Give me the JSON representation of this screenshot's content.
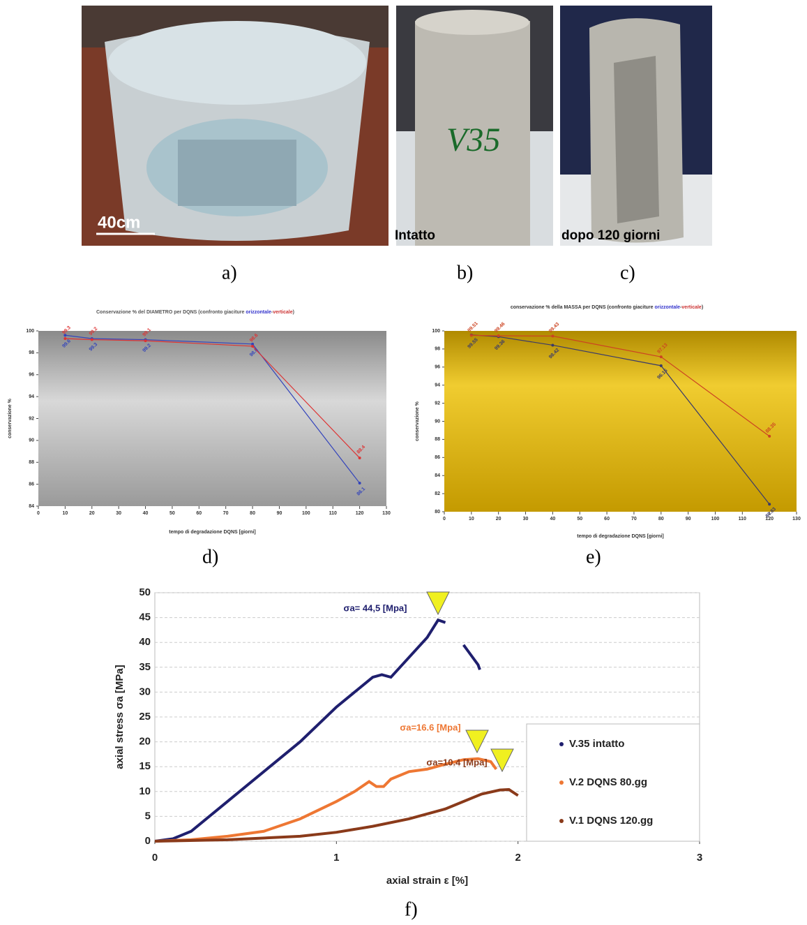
{
  "photos": {
    "scale_label": "40cm",
    "specimen_mark": "V35",
    "intact_label": "Intatto",
    "degraded_label": "dopo 120 giorni"
  },
  "panel_labels": [
    "a)",
    "b)",
    "c)",
    "d)",
    "e)",
    "f)"
  ],
  "chart_data": [
    {
      "type": "line",
      "title_parts": [
        "Conservazione % del DIAMETRO per DQNS (confronto giaciture ",
        "orizzontale",
        "-",
        "verticale",
        ")"
      ],
      "title_colors": [
        "#555555",
        "#3333cc",
        "#555555",
        "#cc3333",
        "#555555"
      ],
      "x_label": "tempo di degradazione DQNS [giorni]",
      "y_label": "conservazione %",
      "x": [
        10,
        20,
        40,
        80,
        120
      ],
      "series": [
        {
          "name": "orizzontale",
          "color": "#3344bb",
          "values": [
            99.6,
            99.3,
            99.2,
            98.8,
            86.1
          ]
        },
        {
          "name": "verticale",
          "color": "#dd3333",
          "values": [
            99.3,
            99.2,
            99.1,
            98.6,
            88.4
          ]
        }
      ],
      "xlim": [
        0,
        130
      ],
      "xticks": [
        0,
        10,
        20,
        30,
        40,
        50,
        60,
        70,
        80,
        90,
        100,
        110,
        120,
        130
      ],
      "ylim": [
        84,
        100
      ],
      "yticks": [
        84,
        86,
        88,
        90,
        92,
        94,
        96,
        98,
        100
      ],
      "grid": false,
      "markers": true,
      "data_labels": true
    },
    {
      "type": "line",
      "title_parts": [
        "conservazione % della MASSA per DQNS (confronto giaciture ",
        "orizzontale",
        "-",
        "verticale",
        ")"
      ],
      "title_colors": [
        "#333333",
        "#3333cc",
        "#333333",
        "#cc3333",
        "#333333"
      ],
      "x_label": "tempo di degradazione DQNS [giorni]",
      "y_label": "conservazione %",
      "x": [
        10,
        20,
        40,
        80,
        120
      ],
      "series": [
        {
          "name": "orizzontale",
          "color": "#3a3a6a",
          "values": [
            99.55,
            99.36,
            98.42,
            96.15,
            80.83
          ]
        },
        {
          "name": "verticale",
          "color": "#cc4422",
          "values": [
            99.51,
            99.46,
            99.43,
            97.13,
            88.35
          ]
        }
      ],
      "xlim": [
        0,
        130
      ],
      "xticks": [
        0,
        10,
        20,
        30,
        40,
        50,
        60,
        70,
        80,
        90,
        100,
        110,
        120,
        130
      ],
      "ylim": [
        80,
        100
      ],
      "yticks": [
        80,
        82,
        84,
        86,
        88,
        90,
        92,
        94,
        96,
        98,
        100
      ],
      "grid": false,
      "markers": true,
      "data_labels": true
    },
    {
      "type": "line",
      "x_label": "axial strain ε [%]",
      "y_label": "axial stress σa [MPa]",
      "series": [
        {
          "name": "V.35 intatto",
          "color": "#1f1f6e",
          "x": [
            0,
            0.1,
            0.2,
            0.4,
            0.6,
            0.8,
            1.0,
            1.2,
            1.25,
            1.3,
            1.4,
            1.5,
            1.56,
            1.6,
            1.65,
            1.7,
            1.72,
            1.74,
            1.76,
            1.78,
            1.79
          ],
          "values": [
            0,
            0.5,
            2,
            8,
            14,
            20,
            27,
            33,
            33.5,
            33,
            37,
            41,
            44.5,
            44,
            null,
            39.5,
            38.5,
            37.5,
            36.5,
            35.5,
            34.5
          ]
        },
        {
          "name": "V.2  DQNS 80.gg",
          "color": "#ee7733",
          "x": [
            0,
            0.2,
            0.4,
            0.6,
            0.8,
            1.0,
            1.1,
            1.18,
            1.22,
            1.26,
            1.3,
            1.4,
            1.5,
            1.6,
            1.7,
            1.78,
            1.85,
            1.88
          ],
          "values": [
            0,
            0.3,
            1,
            2,
            4.5,
            8,
            10,
            12,
            11,
            11,
            12.5,
            14,
            14.5,
            15.5,
            16.4,
            16.6,
            16,
            14.5
          ]
        },
        {
          "name": "V.1  DQNS 120.gg",
          "color": "#8a3a1a",
          "x": [
            0,
            0.4,
            0.8,
            1.0,
            1.2,
            1.4,
            1.6,
            1.8,
            1.9,
            1.95,
            2.0
          ],
          "values": [
            0,
            0.3,
            1,
            1.8,
            3,
            4.5,
            6.5,
            9.5,
            10.3,
            10.4,
            9.2
          ]
        }
      ],
      "annotations": [
        "σa= 44,5 [Mpa]",
        "σa=16.6 [Mpa]",
        "σa=10.4 [Mpa]"
      ],
      "xlim": [
        0,
        3
      ],
      "xticks": [
        0,
        1,
        2,
        3
      ],
      "ylim": [
        0,
        50
      ],
      "yticks": [
        0,
        5,
        10,
        15,
        20,
        25,
        30,
        35,
        40,
        45,
        50
      ],
      "grid": true,
      "markers": false,
      "data_labels": false,
      "legend": "lower-right"
    }
  ]
}
